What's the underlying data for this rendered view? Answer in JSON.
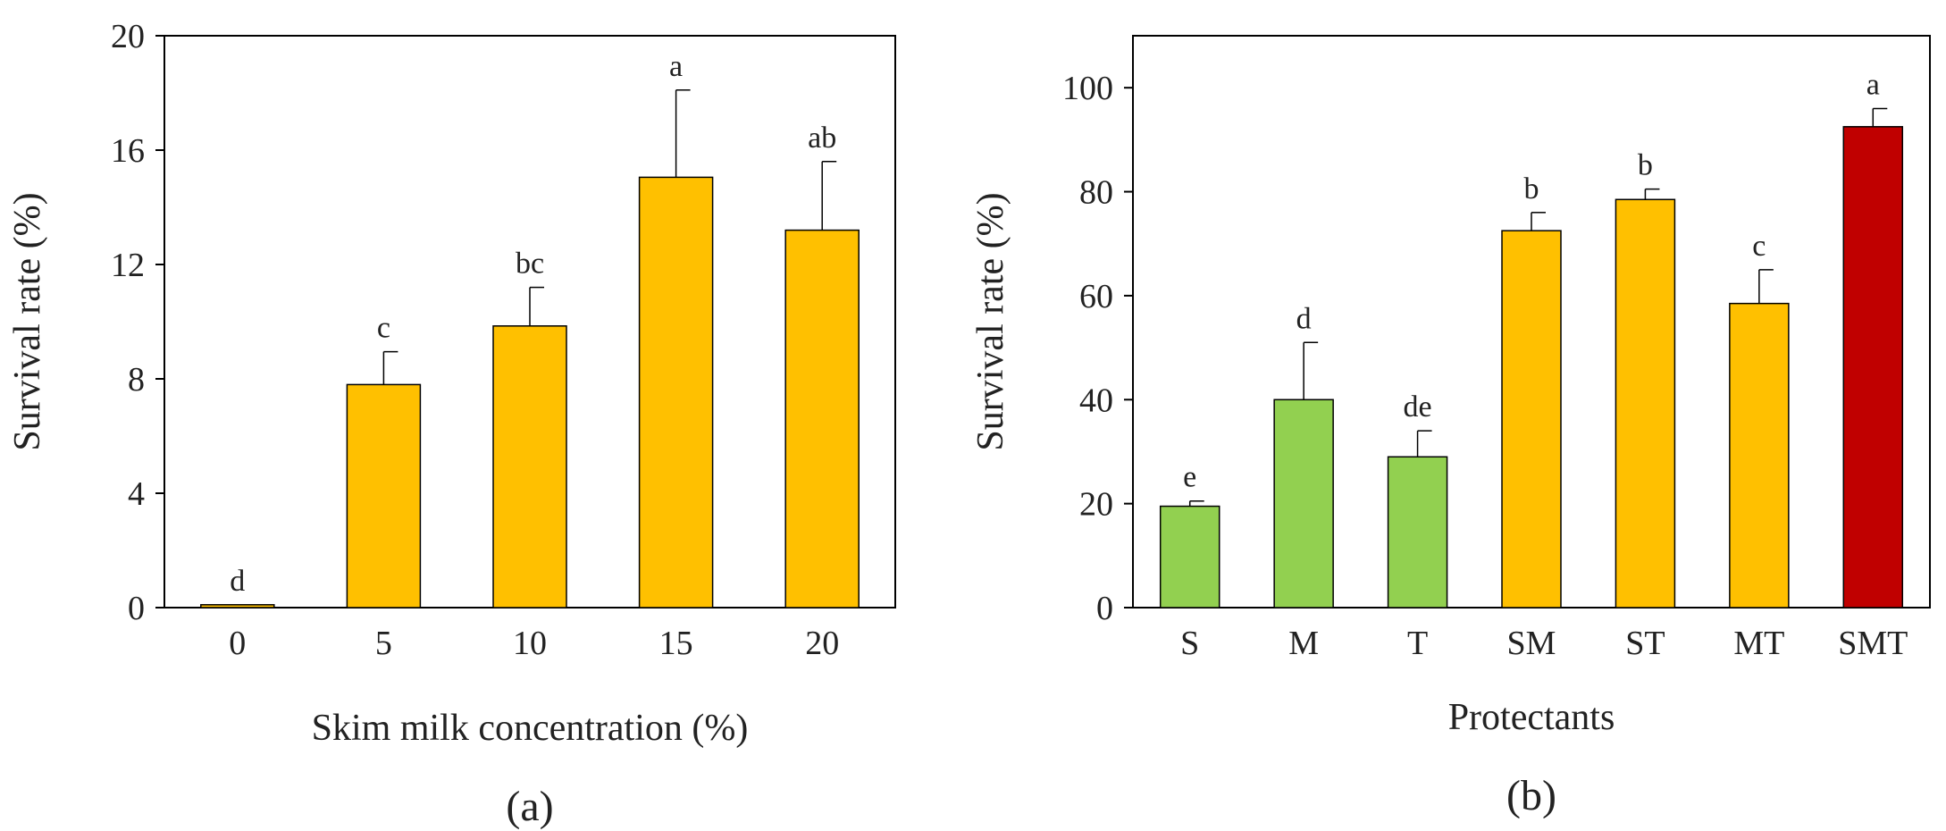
{
  "chart_data": [
    {
      "type": "bar",
      "panel_label": "(a)",
      "xlabel": "Skim milk concentration (%)",
      "ylabel": "Survival rate (%)",
      "ylim": [
        0,
        20
      ],
      "yticks": [
        0,
        4,
        8,
        12,
        16,
        20
      ],
      "categories": [
        "0",
        "5",
        "10",
        "15",
        "20"
      ],
      "values": [
        0.1,
        7.8,
        9.85,
        15.05,
        13.2
      ],
      "errors": [
        0,
        1.15,
        1.35,
        3.05,
        2.4
      ],
      "letters": [
        "d",
        "c",
        "bc",
        "a",
        "ab"
      ],
      "bar_colors": [
        "#FFC000",
        "#FFC000",
        "#FFC000",
        "#FFC000",
        "#FFC000"
      ],
      "grid": false
    },
    {
      "type": "bar",
      "panel_label": "(b)",
      "xlabel": "Protectants",
      "ylabel": "Survival rate (%)",
      "ylim": [
        0,
        110
      ],
      "yticks": [
        0,
        20,
        40,
        60,
        80,
        100
      ],
      "categories": [
        "S",
        "M",
        "T",
        "SM",
        "ST",
        "MT",
        "SMT"
      ],
      "values": [
        19.5,
        40,
        29,
        72.5,
        78.5,
        58.5,
        92.5
      ],
      "errors": [
        1,
        11,
        5,
        3.5,
        2,
        6.5,
        3.5
      ],
      "letters": [
        "e",
        "d",
        "de",
        "b",
        "b",
        "c",
        "a"
      ],
      "bar_colors": [
        "#92D050",
        "#92D050",
        "#92D050",
        "#FFC000",
        "#FFC000",
        "#FFC000",
        "#C00000"
      ],
      "grid": false
    }
  ]
}
